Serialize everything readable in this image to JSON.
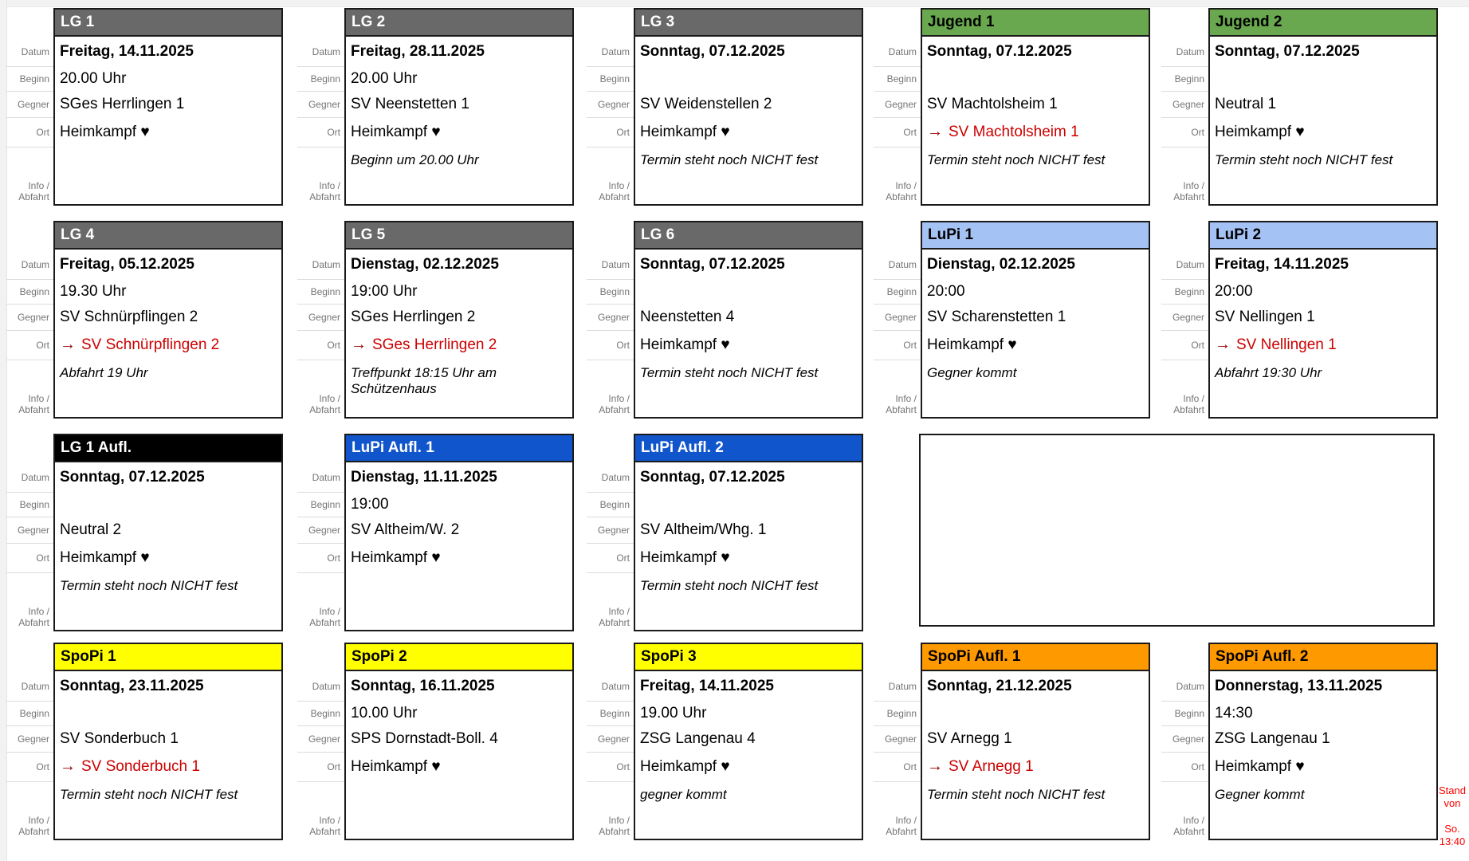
{
  "board": {
    "row_labels": {
      "datum": "Datum",
      "beginn": "Beginn",
      "gegner": "Gegner",
      "ort": "Ort",
      "info_line1": "Info /",
      "info_line2": "Abfahrt"
    },
    "icons": {
      "away_arrow": "→",
      "home_heart": "♥"
    },
    "colors": {
      "header_gray": "#696969",
      "header_green": "#6aa84f",
      "header_lightblue": "#a4c2f4",
      "header_blue": "#1155cc",
      "header_black": "#000000",
      "header_yellow": "#ffff00",
      "header_orange": "#ff9900",
      "away_arrow": "#990000",
      "away_text": "#cc0000",
      "card_border": "#1a1a1a",
      "label_gray": "#757575"
    },
    "stand_note": {
      "line1": "Stand",
      "line2": "von",
      "line3": "So.",
      "line4": "13:40",
      "color": "#ff0000"
    }
  },
  "cards": [
    {
      "title": "LG 1",
      "header_bg": "#696969",
      "header_fg": "#ffffff",
      "row": 0,
      "col": 0,
      "datum": "Freitag, 14.11.2025",
      "beginn": "20.00 Uhr",
      "gegner": "SGes Herrlingen 1",
      "ort": "Heimkampf ♥",
      "ort_away": false,
      "info": ""
    },
    {
      "title": "LG 2",
      "header_bg": "#696969",
      "header_fg": "#ffffff",
      "row": 0,
      "col": 1,
      "datum": "Freitag, 28.11.2025",
      "beginn": "20.00 Uhr",
      "gegner": "SV Neenstetten 1",
      "ort": "Heimkampf ♥",
      "ort_away": false,
      "info": "Beginn um 20.00 Uhr"
    },
    {
      "title": "LG 3",
      "header_bg": "#696969",
      "header_fg": "#ffffff",
      "row": 0,
      "col": 2,
      "datum": "Sonntag, 07.12.2025",
      "beginn": "",
      "gegner": "SV Weidenstellen 2",
      "ort": "Heimkampf ♥",
      "ort_away": false,
      "info": "Termin steht noch NICHT fest"
    },
    {
      "title": "Jugend 1",
      "header_bg": "#6aa84f",
      "header_fg": "#000000",
      "row": 0,
      "col": 3,
      "datum": "Sonntag, 07.12.2025",
      "beginn": "",
      "gegner": "SV Machtolsheim 1",
      "ort": "SV Machtolsheim 1",
      "ort_away": true,
      "info": "Termin steht noch NICHT fest"
    },
    {
      "title": "Jugend 2",
      "header_bg": "#6aa84f",
      "header_fg": "#000000",
      "row": 0,
      "col": 4,
      "datum": "Sonntag, 07.12.2025",
      "beginn": "",
      "gegner": "Neutral 1",
      "ort": "Heimkampf ♥",
      "ort_away": false,
      "info": "Termin steht noch NICHT fest"
    },
    {
      "title": "LG 4",
      "header_bg": "#696969",
      "header_fg": "#ffffff",
      "row": 1,
      "col": 0,
      "datum": "Freitag, 05.12.2025",
      "beginn": "19.30 Uhr",
      "gegner": "SV Schnürpflingen 2",
      "ort": "SV Schnürpflingen 2",
      "ort_away": true,
      "info": "Abfahrt 19 Uhr"
    },
    {
      "title": "LG 5",
      "header_bg": "#696969",
      "header_fg": "#ffffff",
      "row": 1,
      "col": 1,
      "datum": "Dienstag, 02.12.2025",
      "beginn": "19:00 Uhr",
      "gegner": "SGes Herrlingen 2",
      "ort": "SGes Herrlingen 2",
      "ort_away": true,
      "info": "Treffpunkt 18:15 Uhr am Schützenhaus"
    },
    {
      "title": "LG 6",
      "header_bg": "#696969",
      "header_fg": "#ffffff",
      "row": 1,
      "col": 2,
      "datum": "Sonntag, 07.12.2025",
      "beginn": "",
      "gegner": "Neenstetten 4",
      "ort": "Heimkampf ♥",
      "ort_away": false,
      "info": "Termin steht noch NICHT fest"
    },
    {
      "title": "LuPi 1",
      "header_bg": "#a4c2f4",
      "header_fg": "#000000",
      "row": 1,
      "col": 3,
      "datum": "Dienstag, 02.12.2025",
      "beginn": "20:00",
      "gegner": "SV Scharenstetten 1",
      "ort": "Heimkampf ♥",
      "ort_away": false,
      "info": "Gegner kommt"
    },
    {
      "title": "LuPi 2",
      "header_bg": "#a4c2f4",
      "header_fg": "#000000",
      "row": 1,
      "col": 4,
      "datum": "Freitag, 14.11.2025",
      "beginn": "20:00",
      "gegner": "SV Nellingen 1",
      "ort": "SV Nellingen 1",
      "ort_away": true,
      "info": "Abfahrt 19:30 Uhr"
    },
    {
      "title": "LG 1 Aufl.",
      "header_bg": "#000000",
      "header_fg": "#ffffff",
      "row": 2,
      "col": 0,
      "datum": "Sonntag, 07.12.2025",
      "beginn": "",
      "gegner": "Neutral 2",
      "ort": "Heimkampf ♥",
      "ort_away": false,
      "info": "Termin steht noch NICHT fest"
    },
    {
      "title": "LuPi Aufl. 1",
      "header_bg": "#1155cc",
      "header_fg": "#ffffff",
      "row": 2,
      "col": 1,
      "datum": "Dienstag, 11.11.2025",
      "beginn": "19:00",
      "gegner": "SV Altheim/W. 2",
      "ort": "Heimkampf ♥",
      "ort_away": false,
      "info": ""
    },
    {
      "title": "LuPi Aufl. 2",
      "header_bg": "#1155cc",
      "header_fg": "#ffffff",
      "row": 2,
      "col": 2,
      "datum": "Sonntag, 07.12.2025",
      "beginn": "",
      "gegner": "SV Altheim/Whg. 1",
      "ort": "Heimkampf ♥",
      "ort_away": false,
      "info": "Termin steht noch NICHT fest"
    },
    {
      "title": "SpoPi 1",
      "header_bg": "#ffff00",
      "header_fg": "#000000",
      "row": 3,
      "col": 0,
      "datum": "Sonntag, 23.11.2025",
      "beginn": "",
      "gegner": "SV Sonderbuch 1",
      "ort": "SV Sonderbuch 1",
      "ort_away": true,
      "info": "Termin steht noch NICHT fest"
    },
    {
      "title": "SpoPi 2",
      "header_bg": "#ffff00",
      "header_fg": "#000000",
      "row": 3,
      "col": 1,
      "datum": "Sonntag, 16.11.2025",
      "beginn": "10.00 Uhr",
      "gegner": "SPS Dornstadt-Boll. 4",
      "ort": "Heimkampf ♥",
      "ort_away": false,
      "info": ""
    },
    {
      "title": "SpoPi 3",
      "header_bg": "#ffff00",
      "header_fg": "#000000",
      "row": 3,
      "col": 2,
      "datum": "Freitag, 14.11.2025",
      "beginn": "19.00 Uhr",
      "gegner": "ZSG Langenau 4",
      "ort": "Heimkampf ♥",
      "ort_away": false,
      "info": "gegner kommt"
    },
    {
      "title": "SpoPi Aufl. 1",
      "header_bg": "#ff9900",
      "header_fg": "#000000",
      "row": 3,
      "col": 3,
      "datum": "Sonntag, 21.12.2025",
      "beginn": "",
      "gegner": "SV Arnegg 1",
      "ort": "SV Arnegg 1",
      "ort_away": true,
      "info": "Termin steht noch NICHT fest"
    },
    {
      "title": "SpoPi Aufl. 2",
      "header_bg": "#ff9900",
      "header_fg": "#000000",
      "row": 3,
      "col": 4,
      "datum": "Donnerstag, 13.11.2025",
      "beginn": "14:30",
      "gegner": "ZSG Langenau 1",
      "ort": "Heimkampf ♥",
      "ort_away": false,
      "info": "Gegner kommt"
    }
  ]
}
